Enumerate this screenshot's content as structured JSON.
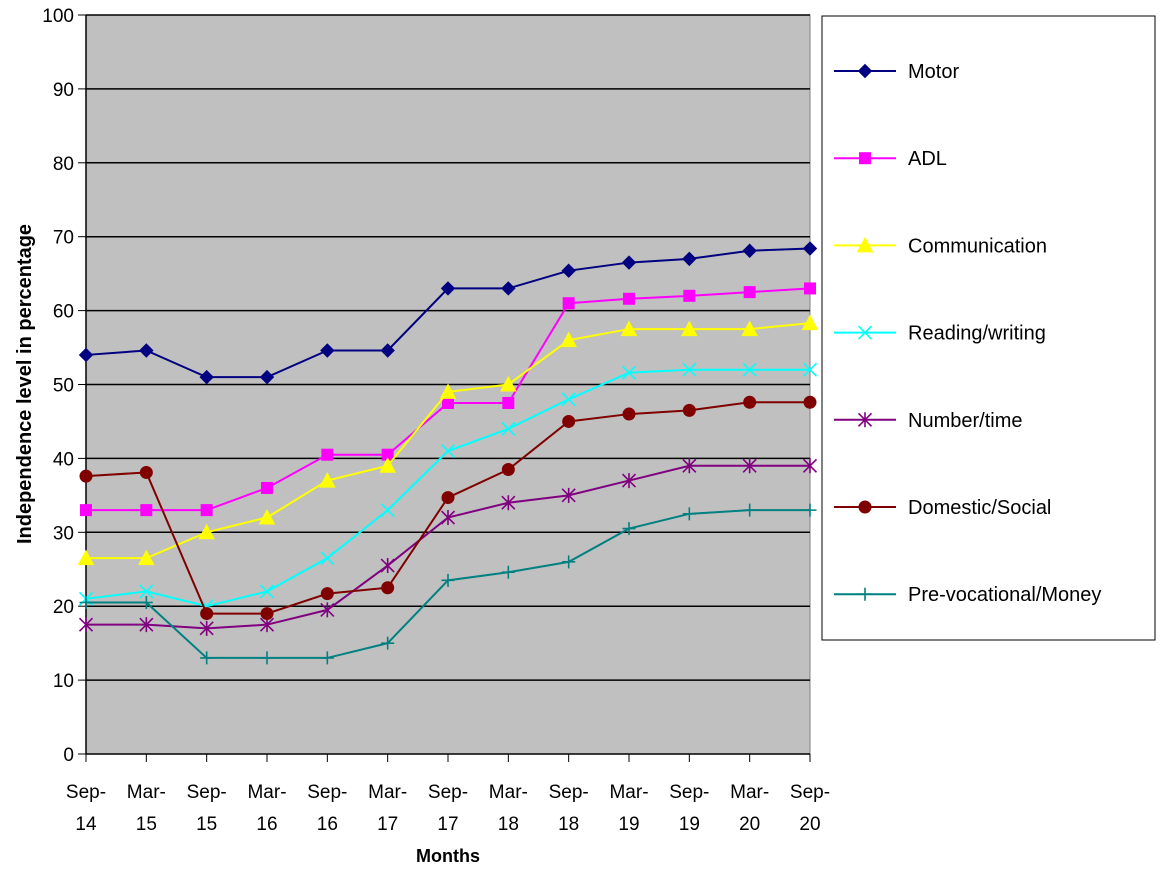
{
  "chart_data": {
    "type": "line",
    "xlabel": "Months",
    "ylabel": "Independence level in percentage",
    "ylim": [
      0,
      100
    ],
    "yticks": [
      0,
      10,
      20,
      30,
      40,
      50,
      60,
      70,
      80,
      90,
      100
    ],
    "categories": [
      [
        "Sep-",
        "14"
      ],
      [
        "Mar-",
        "15"
      ],
      [
        "Sep-",
        "15"
      ],
      [
        "Mar-",
        "16"
      ],
      [
        "Sep-",
        "16"
      ],
      [
        "Mar-",
        "17"
      ],
      [
        "Sep-",
        "17"
      ],
      [
        "Mar-",
        "18"
      ],
      [
        "Sep-",
        "18"
      ],
      [
        "Mar-",
        "19"
      ],
      [
        "Sep-",
        "19"
      ],
      [
        "Mar-",
        "20"
      ],
      [
        "Sep-",
        "20"
      ]
    ],
    "grid": "horizontal",
    "plot_background": "#c0c0c0",
    "legend_position": "right",
    "series": [
      {
        "name": "Motor",
        "color": "#000080",
        "marker": "diamond",
        "values": [
          54,
          54.6,
          51,
          51,
          54.6,
          54.6,
          63,
          63,
          65.4,
          66.5,
          67,
          68.1,
          68.4
        ]
      },
      {
        "name": "ADL",
        "color": "#ff00ff",
        "marker": "square",
        "values": [
          33,
          33,
          33,
          36,
          40.5,
          40.5,
          47.5,
          47.5,
          61,
          61.6,
          62,
          62.5,
          63
        ]
      },
      {
        "name": "Communication",
        "color": "#ffff00",
        "marker": "triangle",
        "values": [
          26.5,
          26.5,
          30,
          32,
          37,
          39,
          49,
          50,
          56,
          57.5,
          57.5,
          57.5,
          58.3
        ]
      },
      {
        "name": "Reading/writing",
        "color": "#00ffff",
        "marker": "x",
        "values": [
          21,
          22,
          20,
          22,
          26.5,
          33,
          41,
          44,
          48,
          51.6,
          52,
          52,
          52
        ]
      },
      {
        "name": "Number/time",
        "color": "#800080",
        "marker": "star",
        "values": [
          17.5,
          17.5,
          17,
          17.5,
          19.5,
          25.5,
          32,
          34,
          35,
          37,
          39,
          39,
          39
        ]
      },
      {
        "name": "Domestic/Social",
        "color": "#800000",
        "marker": "circle",
        "values": [
          37.6,
          38.1,
          19,
          19,
          21.7,
          22.5,
          34.7,
          38.5,
          45,
          46,
          46.5,
          47.6,
          47.6
        ]
      },
      {
        "name": "Pre-vocational/Money",
        "color": "#008080",
        "marker": "plus",
        "values": [
          20.5,
          20.5,
          13,
          13,
          13,
          15,
          23.5,
          24.6,
          26,
          30.5,
          32.5,
          33,
          33
        ]
      }
    ]
  }
}
